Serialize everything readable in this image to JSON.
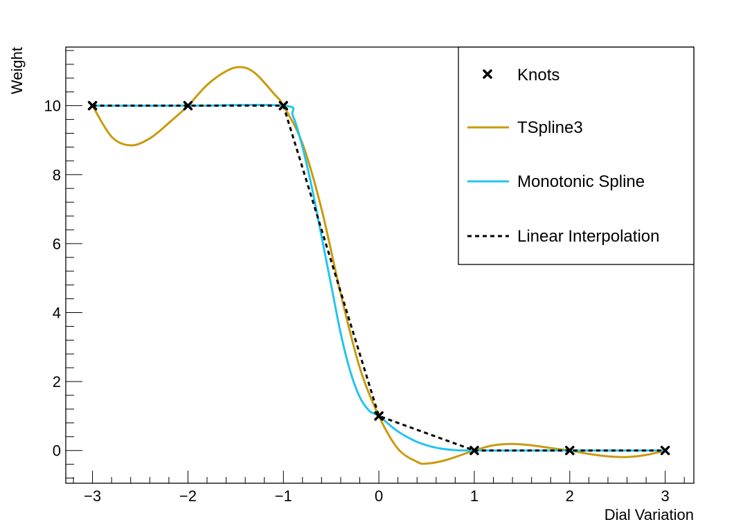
{
  "chart_data": {
    "type": "line",
    "xlabel": "Dial Variation",
    "ylabel": "Weight",
    "xlim": [
      -3.28,
      3.3
    ],
    "ylim": [
      -0.95,
      11.7
    ],
    "x_ticks": [
      {
        "value": -3,
        "label": "−3"
      },
      {
        "value": -2,
        "label": "−2"
      },
      {
        "value": -1,
        "label": "−1"
      },
      {
        "value": 0,
        "label": "0"
      },
      {
        "value": 1,
        "label": "1"
      },
      {
        "value": 2,
        "label": "2"
      },
      {
        "value": 3,
        "label": "3"
      }
    ],
    "y_ticks": [
      {
        "value": 0,
        "label": "0"
      },
      {
        "value": 2,
        "label": "2"
      },
      {
        "value": 4,
        "label": "4"
      },
      {
        "value": 6,
        "label": "6"
      },
      {
        "value": 8,
        "label": "8"
      },
      {
        "value": 10,
        "label": "10"
      }
    ],
    "legend_position": "top-right",
    "grid": false,
    "knots": {
      "name": "Knots",
      "color": "#000000",
      "marker": "x",
      "x": [
        -3,
        -2,
        -1,
        0,
        1,
        2,
        3
      ],
      "y": [
        10,
        10,
        10,
        1,
        0,
        0,
        0
      ]
    },
    "series": [
      {
        "name": "TSpline3",
        "color": "#c99a0c",
        "style": "solid",
        "x": [
          -3,
          -2.8,
          -2.6,
          -2.4,
          -2.2,
          -2,
          -1.8,
          -1.6,
          -1.45,
          -1.3,
          -1.1,
          -1,
          -0.8,
          -0.6,
          -0.4,
          -0.2,
          0,
          0.2,
          0.4,
          0.5,
          0.7,
          1,
          1.2,
          1.4,
          1.6,
          1.8,
          2,
          2.2,
          2.4,
          2.6,
          2.8,
          3
        ],
        "y": [
          10,
          9.1,
          8.85,
          9.05,
          9.5,
          10,
          10.6,
          11.0,
          11.12,
          10.95,
          10.35,
          10,
          8.9,
          7.0,
          4.55,
          2.4,
          1,
          0.05,
          -0.33,
          -0.38,
          -0.28,
          0,
          0.15,
          0.19,
          0.15,
          0.07,
          0,
          -0.1,
          -0.17,
          -0.19,
          -0.13,
          0
        ]
      },
      {
        "name": "Monotonic Spline",
        "color": "#22c4f0",
        "style": "solid",
        "x": [
          -3,
          -2,
          -1,
          -0.9,
          -0.8,
          -0.7,
          -0.6,
          -0.5,
          -0.4,
          -0.3,
          -0.2,
          -0.1,
          0,
          0.2,
          0.4,
          0.6,
          0.8,
          1,
          2,
          3
        ],
        "y": [
          10,
          10,
          10,
          9.7,
          8.8,
          7.6,
          6.2,
          4.8,
          3.4,
          2.3,
          1.55,
          1.15,
          1,
          0.55,
          0.25,
          0.08,
          0.01,
          0,
          0,
          0
        ]
      },
      {
        "name": "Linear Interpolation",
        "color": "#000000",
        "style": "dashed",
        "x": [
          -3,
          -2,
          -1,
          0,
          1,
          2,
          3
        ],
        "y": [
          10,
          10,
          10,
          1,
          0,
          0,
          0
        ]
      }
    ]
  }
}
